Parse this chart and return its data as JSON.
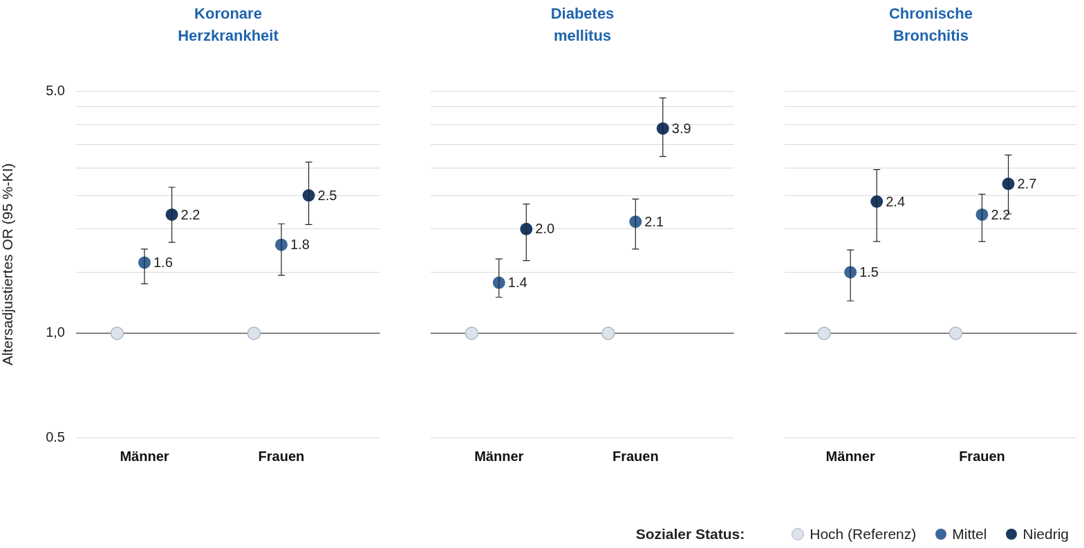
{
  "chart_data": [
    {
      "type": "scatter",
      "title": "Koronare\nHerzkrankheit",
      "ylabel": "Altersadjustiertes OR (95 %-KI)",
      "categories": [
        "Männer",
        "Frauen"
      ],
      "log": "y",
      "ylim": [
        0.5,
        5
      ],
      "yticks": [
        {
          "value": 0.5,
          "label": "0.5"
        },
        {
          "value": 1,
          "label": "1,0"
        },
        {
          "value": 1.5,
          "label": null
        },
        {
          "value": 2,
          "label": null
        },
        {
          "value": 2.5,
          "label": null
        },
        {
          "value": 3,
          "label": null
        },
        {
          "value": 3.5,
          "label": null
        },
        {
          "value": 4,
          "label": null
        },
        {
          "value": 4.5,
          "label": null
        },
        {
          "value": 5,
          "label": "5.0"
        }
      ],
      "grid": "y",
      "legend": false,
      "marker": "circle",
      "ref_lines": [
        {
          "axis": "y",
          "value": 1,
          "color": "#404040"
        }
      ],
      "series": [
        {
          "color": "#dce3ed",
          "values": [
            1,
            1
          ],
          "value_labels": [
            null,
            null
          ]
        },
        {
          "color": "#3a6699",
          "values": [
            1.6,
            1.8
          ],
          "errors": [
            [
              1.39,
              1.75
            ],
            [
              1.47,
              2.07
            ]
          ],
          "value_labels": [
            "1.6",
            "1.8"
          ]
        },
        {
          "color": "#1b3a63",
          "values": [
            2.2,
            2.5
          ],
          "errors": [
            [
              1.83,
              2.64
            ],
            [
              2.06,
              3.12
            ]
          ],
          "value_labels": [
            "2.2",
            "2.5"
          ]
        }
      ]
    },
    {
      "type": "scatter",
      "title": "Diabetes\nmellitus",
      "categories": [
        "Männer",
        "Frauen"
      ],
      "log": "y",
      "ylim": [
        0.5,
        5
      ],
      "yticks": [
        {
          "value": 0.5,
          "label": null
        },
        {
          "value": 1,
          "label": null
        },
        {
          "value": 1.5,
          "label": null
        },
        {
          "value": 2,
          "label": null
        },
        {
          "value": 2.5,
          "label": null
        },
        {
          "value": 3,
          "label": null
        },
        {
          "value": 3.5,
          "label": null
        },
        {
          "value": 4,
          "label": null
        },
        {
          "value": 4.5,
          "label": null
        },
        {
          "value": 5,
          "label": null
        }
      ],
      "tick_labels": "x",
      "grid": "y",
      "legend": false,
      "marker": "circle",
      "ref_lines": [
        {
          "axis": "y",
          "value": 1,
          "color": "#404040"
        }
      ],
      "series": [
        {
          "color": "#dce3ed",
          "values": [
            1,
            1
          ],
          "value_labels": [
            null,
            null
          ]
        },
        {
          "color": "#3a6699",
          "values": [
            1.4,
            2.1
          ],
          "errors": [
            [
              1.27,
              1.64
            ],
            [
              1.75,
              2.44
            ]
          ],
          "value_labels": [
            "1.4",
            "2.1"
          ]
        },
        {
          "color": "#1b3a63",
          "values": [
            2.0,
            3.9
          ],
          "errors": [
            [
              1.62,
              2.36
            ],
            [
              3.24,
              4.78
            ]
          ],
          "value_labels": [
            "2.0",
            "3.9"
          ]
        }
      ]
    },
    {
      "type": "scatter",
      "title": "Chronische\nBronchitis",
      "categories": [
        "Männer",
        "Frauen"
      ],
      "log": "y",
      "ylim": [
        0.5,
        5
      ],
      "yticks": [
        {
          "value": 0.5,
          "label": null
        },
        {
          "value": 1,
          "label": null
        },
        {
          "value": 1.5,
          "label": null
        },
        {
          "value": 2,
          "label": null
        },
        {
          "value": 2.5,
          "label": null
        },
        {
          "value": 3,
          "label": null
        },
        {
          "value": 3.5,
          "label": null
        },
        {
          "value": 4,
          "label": null
        },
        {
          "value": 4.5,
          "label": null
        },
        {
          "value": 5,
          "label": null
        }
      ],
      "tick_labels": "x",
      "grid": "y",
      "legend": "bottom right",
      "legend_title": "Sozialer Status:",
      "marker": "circle",
      "ref_lines": [
        {
          "axis": "y",
          "value": 1,
          "color": "#404040"
        }
      ],
      "series": [
        {
          "name": "Hoch (Referenz)",
          "color": "#dce3ed",
          "values": [
            1,
            1
          ],
          "value_labels": [
            null,
            null
          ]
        },
        {
          "name": "Mittel",
          "color": "#3a6699",
          "values": [
            1.5,
            2.2
          ],
          "errors": [
            [
              1.24,
              1.74
            ],
            [
              1.84,
              2.52
            ]
          ],
          "value_labels": [
            "1.5",
            "2.2"
          ]
        },
        {
          "name": "Niedrig",
          "color": "#1b3a63",
          "values": [
            2.4,
            2.7
          ],
          "errors": [
            [
              1.84,
              2.97
            ],
            [
              2.21,
              3.27
            ]
          ],
          "value_labels": [
            "2.4",
            "2.7"
          ]
        }
      ]
    }
  ]
}
